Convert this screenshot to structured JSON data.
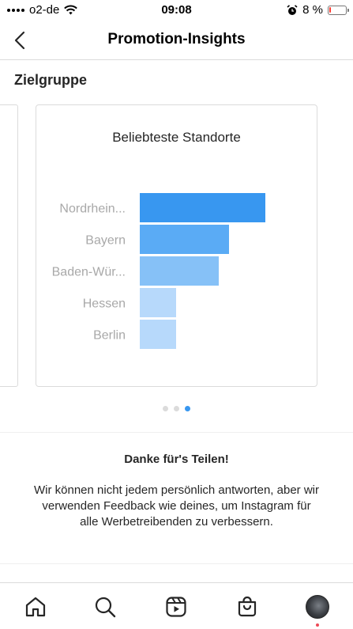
{
  "status_bar": {
    "carrier": "o2-de",
    "time": "09:08",
    "battery_percent": "8 %",
    "battery_level": 0.08,
    "icons": [
      "signal-icon",
      "wifi-icon",
      "alarm-icon",
      "battery-icon"
    ]
  },
  "header": {
    "title": "Promotion-Insights",
    "back_icon": "chevron-left-icon"
  },
  "section": {
    "title": "Zielgruppe"
  },
  "carousel": {
    "page_count": 3,
    "active_index": 2
  },
  "chart_data": {
    "type": "bar",
    "orientation": "horizontal",
    "title": "Beliebteste Standorte",
    "categories": [
      "Nordrhein...",
      "Bayern",
      "Baden-Wür...",
      "Hessen",
      "Berlin"
    ],
    "values": [
      100,
      71,
      63,
      29,
      29
    ],
    "colors": [
      "#3897f0",
      "#5aabf5",
      "#86c1f7",
      "#b7d9fb",
      "#b7d9fb"
    ],
    "xlim": [
      0,
      100
    ],
    "grid": false
  },
  "feedback": {
    "title": "Danke für's Teilen!",
    "body": "Wir können nicht jedem persönlich antworten, aber wir verwenden Feedback wie deines, um Instagram für alle Werbetreibenden zu verbessern."
  },
  "tab_bar": {
    "items": [
      "home-icon",
      "search-icon",
      "reels-icon",
      "shop-icon",
      "profile-avatar"
    ]
  },
  "colors": {
    "accent": "#3897f0",
    "notification": "#ed4956",
    "border": "#dbdbdb"
  }
}
